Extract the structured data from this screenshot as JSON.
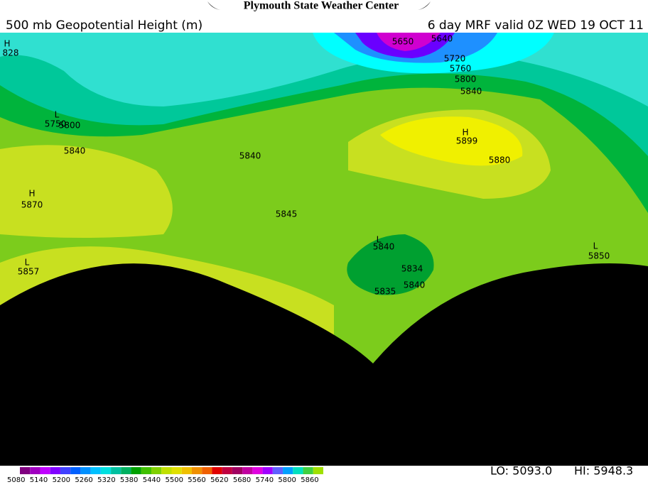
{
  "header": {
    "title": "Plymouth State Weather Center",
    "left": "500 mb Geopotential Height (m)",
    "right": "6 day MRF valid 0Z WED 19 OCT 11"
  },
  "map_labels": [
    "H",
    "828",
    "L",
    "5750",
    "5800",
    "5840",
    "H",
    "5870",
    "L",
    "5857",
    "5840",
    "5845",
    "L",
    "5840",
    "5834",
    "5835",
    "5840",
    "H",
    "5899",
    "5880",
    "5650",
    "5640",
    "5720",
    "5760",
    "5800",
    "5840",
    "L",
    "5850"
  ],
  "colorbar": {
    "labels": [
      "5080",
      "5140",
      "5200",
      "5260",
      "5320",
      "5380",
      "5440",
      "5500",
      "5560",
      "5620",
      "5680",
      "5740",
      "5800",
      "5860"
    ]
  },
  "footer": {
    "lo": "LO: 5093.0",
    "hi": "HI: 5948.3"
  }
}
